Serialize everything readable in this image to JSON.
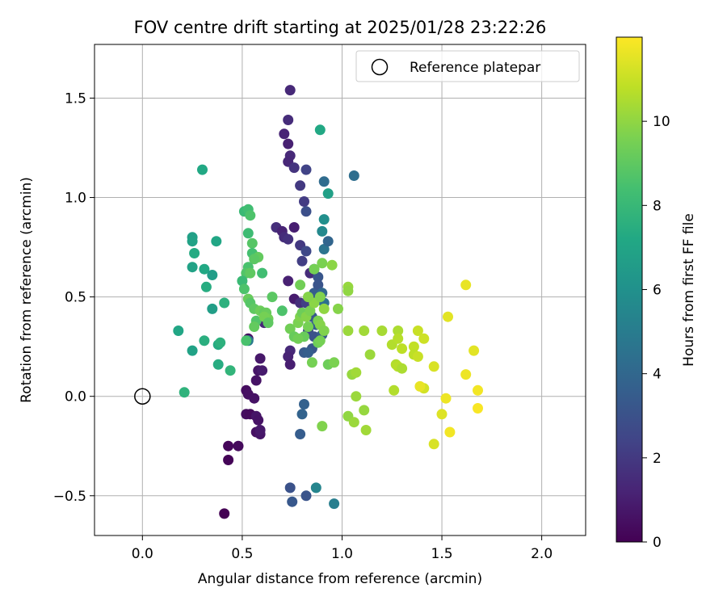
{
  "chart_data": {
    "type": "scatter",
    "title": "FOV centre drift starting at 2025/01/28 23:22:26",
    "xlabel": "Angular distance from reference (arcmin)",
    "ylabel": "Rotation from reference (arcmin)",
    "xlim": [
      -0.24,
      2.22
    ],
    "ylim": [
      -0.7,
      1.77
    ],
    "x_ticks": [
      0.0,
      0.5,
      1.0,
      1.5,
      2.0
    ],
    "x_tick_labels": [
      "0.0",
      "0.5",
      "1.0",
      "1.5",
      "2.0"
    ],
    "y_ticks": [
      -0.5,
      0.0,
      0.5,
      1.0,
      1.5
    ],
    "y_tick_labels": [
      "−0.5",
      "0.0",
      "0.5",
      "1.0",
      "1.5"
    ],
    "grid": true,
    "colormap": "viridis",
    "colorbar": {
      "label": "Hours from first FF file",
      "range": [
        0,
        12
      ],
      "ticks": [
        0,
        2,
        4,
        6,
        8,
        10
      ],
      "tick_labels": [
        "0",
        "2",
        "4",
        "6",
        "8",
        "10"
      ]
    },
    "legend": {
      "position": "top-right",
      "entries": [
        {
          "label": "Reference platepar",
          "marker": "open-circle"
        }
      ]
    },
    "reference_point": {
      "x": 0.0,
      "y": 0.0
    },
    "points": [
      {
        "x": 0.74,
        "y": 1.54,
        "h": 1.4
      },
      {
        "x": 0.73,
        "y": 1.39,
        "h": 1.5
      },
      {
        "x": 0.71,
        "y": 1.32,
        "h": 1.2
      },
      {
        "x": 0.73,
        "y": 1.27,
        "h": 1.1
      },
      {
        "x": 0.74,
        "y": 1.21,
        "h": 1.4
      },
      {
        "x": 0.73,
        "y": 1.18,
        "h": 1.3
      },
      {
        "x": 0.76,
        "y": 1.15,
        "h": 1.8
      },
      {
        "x": 0.79,
        "y": 1.06,
        "h": 2.0
      },
      {
        "x": 0.82,
        "y": 1.14,
        "h": 2.4
      },
      {
        "x": 0.81,
        "y": 0.98,
        "h": 2.1
      },
      {
        "x": 0.82,
        "y": 0.93,
        "h": 2.9
      },
      {
        "x": 0.67,
        "y": 0.85,
        "h": 1.6
      },
      {
        "x": 0.7,
        "y": 0.83,
        "h": 1.2
      },
      {
        "x": 0.76,
        "y": 0.85,
        "h": 1.0
      },
      {
        "x": 0.71,
        "y": 0.8,
        "h": 1.5
      },
      {
        "x": 0.73,
        "y": 0.79,
        "h": 1.7
      },
      {
        "x": 0.79,
        "y": 0.76,
        "h": 2.0
      },
      {
        "x": 0.82,
        "y": 0.73,
        "h": 2.6
      },
      {
        "x": 0.8,
        "y": 0.68,
        "h": 2.2
      },
      {
        "x": 0.84,
        "y": 0.62,
        "h": 1.5
      },
      {
        "x": 0.86,
        "y": 0.64,
        "h": 3.5
      },
      {
        "x": 0.88,
        "y": 0.6,
        "h": 3.2
      },
      {
        "x": 0.91,
        "y": 0.74,
        "h": 4.6
      },
      {
        "x": 0.93,
        "y": 0.78,
        "h": 3.9
      },
      {
        "x": 0.9,
        "y": 0.83,
        "h": 5.6
      },
      {
        "x": 0.91,
        "y": 0.89,
        "h": 5.9
      },
      {
        "x": 0.93,
        "y": 1.02,
        "h": 6.8
      },
      {
        "x": 0.91,
        "y": 1.08,
        "h": 4.2
      },
      {
        "x": 0.89,
        "y": 1.34,
        "h": 7.2
      },
      {
        "x": 1.06,
        "y": 1.11,
        "h": 4.3
      },
      {
        "x": 0.73,
        "y": 0.58,
        "h": 1.1
      },
      {
        "x": 0.76,
        "y": 0.49,
        "h": 0.9
      },
      {
        "x": 0.79,
        "y": 0.47,
        "h": 1.6
      },
      {
        "x": 0.82,
        "y": 0.47,
        "h": 2.3
      },
      {
        "x": 0.86,
        "y": 0.52,
        "h": 3.5
      },
      {
        "x": 0.88,
        "y": 0.56,
        "h": 3.1
      },
      {
        "x": 0.9,
        "y": 0.52,
        "h": 4.0
      },
      {
        "x": 0.91,
        "y": 0.47,
        "h": 4.4
      },
      {
        "x": 0.85,
        "y": 0.4,
        "h": 3.3
      },
      {
        "x": 0.87,
        "y": 0.36,
        "h": 3.6
      },
      {
        "x": 0.83,
        "y": 0.33,
        "h": 2.6
      },
      {
        "x": 0.86,
        "y": 0.3,
        "h": 3.0
      },
      {
        "x": 0.9,
        "y": 0.31,
        "h": 3.4
      },
      {
        "x": 0.88,
        "y": 0.28,
        "h": 2.9
      },
      {
        "x": 0.85,
        "y": 0.24,
        "h": 3.2
      },
      {
        "x": 0.81,
        "y": 0.22,
        "h": 3.4
      },
      {
        "x": 0.83,
        "y": 0.22,
        "h": 3.6
      },
      {
        "x": 0.74,
        "y": 0.23,
        "h": 1.4
      },
      {
        "x": 0.73,
        "y": 0.2,
        "h": 1.2
      },
      {
        "x": 0.74,
        "y": 0.16,
        "h": 1.0
      },
      {
        "x": 0.59,
        "y": 0.19,
        "h": 0.8
      },
      {
        "x": 0.58,
        "y": 0.13,
        "h": 0.7
      },
      {
        "x": 0.6,
        "y": 0.13,
        "h": 0.9
      },
      {
        "x": 0.57,
        "y": 0.08,
        "h": 0.6
      },
      {
        "x": 0.53,
        "y": 0.29,
        "h": 0.5
      },
      {
        "x": 0.53,
        "y": 0.28,
        "h": 4.9
      },
      {
        "x": 0.52,
        "y": 0.03,
        "h": 0.4
      },
      {
        "x": 0.53,
        "y": 0.01,
        "h": 0.5
      },
      {
        "x": 0.56,
        "y": -0.01,
        "h": 0.6
      },
      {
        "x": 0.52,
        "y": -0.09,
        "h": 0.4
      },
      {
        "x": 0.54,
        "y": -0.09,
        "h": 0.3
      },
      {
        "x": 0.57,
        "y": -0.1,
        "h": 0.7
      },
      {
        "x": 0.58,
        "y": -0.12,
        "h": 0.6
      },
      {
        "x": 0.57,
        "y": -0.18,
        "h": 0.5
      },
      {
        "x": 0.59,
        "y": -0.19,
        "h": 0.7
      },
      {
        "x": 0.59,
        "y": -0.17,
        "h": 0.8
      },
      {
        "x": 0.43,
        "y": -0.25,
        "h": 0.2
      },
      {
        "x": 0.48,
        "y": -0.25,
        "h": 0.3
      },
      {
        "x": 0.43,
        "y": -0.32,
        "h": 0.1
      },
      {
        "x": 0.41,
        "y": -0.59,
        "h": 0.0
      },
      {
        "x": 0.74,
        "y": -0.46,
        "h": 3.0
      },
      {
        "x": 0.75,
        "y": -0.53,
        "h": 3.3
      },
      {
        "x": 0.82,
        "y": -0.5,
        "h": 3.1
      },
      {
        "x": 0.87,
        "y": -0.46,
        "h": 5.4
      },
      {
        "x": 0.96,
        "y": -0.54,
        "h": 5.1
      },
      {
        "x": 0.79,
        "y": -0.19,
        "h": 3.5
      },
      {
        "x": 0.8,
        "y": -0.09,
        "h": 3.8
      },
      {
        "x": 0.81,
        "y": -0.04,
        "h": 3.7
      },
      {
        "x": 0.61,
        "y": 0.37,
        "h": 1.3
      },
      {
        "x": 0.3,
        "y": 1.14,
        "h": 7.2
      },
      {
        "x": 0.25,
        "y": 0.8,
        "h": 6.8
      },
      {
        "x": 0.25,
        "y": 0.78,
        "h": 6.9
      },
      {
        "x": 0.37,
        "y": 0.78,
        "h": 7.1
      },
      {
        "x": 0.26,
        "y": 0.72,
        "h": 7.3
      },
      {
        "x": 0.25,
        "y": 0.65,
        "h": 6.9
      },
      {
        "x": 0.31,
        "y": 0.64,
        "h": 7.2
      },
      {
        "x": 0.35,
        "y": 0.61,
        "h": 6.6
      },
      {
        "x": 0.32,
        "y": 0.55,
        "h": 7.4
      },
      {
        "x": 0.35,
        "y": 0.44,
        "h": 6.7
      },
      {
        "x": 0.41,
        "y": 0.47,
        "h": 7.6
      },
      {
        "x": 0.18,
        "y": 0.33,
        "h": 7.1
      },
      {
        "x": 0.31,
        "y": 0.28,
        "h": 7.5
      },
      {
        "x": 0.38,
        "y": 0.26,
        "h": 7.3
      },
      {
        "x": 0.39,
        "y": 0.27,
        "h": 7.6
      },
      {
        "x": 0.25,
        "y": 0.23,
        "h": 6.9
      },
      {
        "x": 0.38,
        "y": 0.16,
        "h": 7.4
      },
      {
        "x": 0.44,
        "y": 0.13,
        "h": 7.8
      },
      {
        "x": 0.21,
        "y": 0.02,
        "h": 7.7
      },
      {
        "x": 0.51,
        "y": 0.93,
        "h": 8.1
      },
      {
        "x": 0.53,
        "y": 0.94,
        "h": 8.3
      },
      {
        "x": 0.54,
        "y": 0.91,
        "h": 8.6
      },
      {
        "x": 0.53,
        "y": 0.82,
        "h": 8.2
      },
      {
        "x": 0.55,
        "y": 0.77,
        "h": 8.8
      },
      {
        "x": 0.55,
        "y": 0.72,
        "h": 8.4
      },
      {
        "x": 0.58,
        "y": 0.7,
        "h": 9.1
      },
      {
        "x": 0.56,
        "y": 0.69,
        "h": 8.9
      },
      {
        "x": 0.53,
        "y": 0.65,
        "h": 8.5
      },
      {
        "x": 0.52,
        "y": 0.62,
        "h": 8.7
      },
      {
        "x": 0.54,
        "y": 0.62,
        "h": 9.0
      },
      {
        "x": 0.6,
        "y": 0.62,
        "h": 8.3
      },
      {
        "x": 0.5,
        "y": 0.58,
        "h": 8.1
      },
      {
        "x": 0.51,
        "y": 0.54,
        "h": 8.6
      },
      {
        "x": 0.53,
        "y": 0.49,
        "h": 9.2
      },
      {
        "x": 0.54,
        "y": 0.47,
        "h": 8.8
      },
      {
        "x": 0.65,
        "y": 0.5,
        "h": 8.9
      },
      {
        "x": 0.56,
        "y": 0.44,
        "h": 9.0
      },
      {
        "x": 0.59,
        "y": 0.43,
        "h": 9.3
      },
      {
        "x": 0.61,
        "y": 0.42,
        "h": 9.1
      },
      {
        "x": 0.62,
        "y": 0.42,
        "h": 9.2
      },
      {
        "x": 0.63,
        "y": 0.39,
        "h": 9.4
      },
      {
        "x": 0.57,
        "y": 0.38,
        "h": 8.7
      },
      {
        "x": 0.61,
        "y": 0.4,
        "h": 9.5
      },
      {
        "x": 0.63,
        "y": 0.37,
        "h": 9.0
      },
      {
        "x": 0.7,
        "y": 0.43,
        "h": 8.6
      },
      {
        "x": 0.56,
        "y": 0.35,
        "h": 9.1
      },
      {
        "x": 0.52,
        "y": 0.28,
        "h": 8.5
      },
      {
        "x": 0.74,
        "y": 0.34,
        "h": 9.4
      },
      {
        "x": 0.76,
        "y": 0.3,
        "h": 9.2
      },
      {
        "x": 0.78,
        "y": 0.37,
        "h": 9.6
      },
      {
        "x": 0.79,
        "y": 0.4,
        "h": 9.7
      },
      {
        "x": 0.8,
        "y": 0.42,
        "h": 9.3
      },
      {
        "x": 0.82,
        "y": 0.4,
        "h": 9.8
      },
      {
        "x": 0.83,
        "y": 0.35,
        "h": 9.5
      },
      {
        "x": 0.81,
        "y": 0.3,
        "h": 9.2
      },
      {
        "x": 0.78,
        "y": 0.29,
        "h": 9.4
      },
      {
        "x": 0.88,
        "y": 0.38,
        "h": 9.6
      },
      {
        "x": 0.89,
        "y": 0.36,
        "h": 9.8
      },
      {
        "x": 0.91,
        "y": 0.33,
        "h": 9.7
      },
      {
        "x": 0.88,
        "y": 0.27,
        "h": 9.3
      },
      {
        "x": 0.89,
        "y": 0.28,
        "h": 9.5
      },
      {
        "x": 0.84,
        "y": 0.43,
        "h": 9.6
      },
      {
        "x": 0.86,
        "y": 0.47,
        "h": 9.9
      },
      {
        "x": 0.89,
        "y": 0.5,
        "h": 9.7
      },
      {
        "x": 0.83,
        "y": 0.5,
        "h": 9.8
      },
      {
        "x": 0.79,
        "y": 0.56,
        "h": 9.4
      },
      {
        "x": 0.86,
        "y": 0.64,
        "h": 9.5
      },
      {
        "x": 0.9,
        "y": 0.67,
        "h": 9.6
      },
      {
        "x": 0.95,
        "y": 0.66,
        "h": 9.9
      },
      {
        "x": 0.91,
        "y": 0.44,
        "h": 10.0
      },
      {
        "x": 0.98,
        "y": 0.44,
        "h": 9.8
      },
      {
        "x": 0.85,
        "y": 0.17,
        "h": 9.5
      },
      {
        "x": 0.93,
        "y": 0.16,
        "h": 9.3
      },
      {
        "x": 0.96,
        "y": 0.17,
        "h": 9.6
      },
      {
        "x": 0.9,
        "y": -0.15,
        "h": 9.7
      },
      {
        "x": 1.03,
        "y": 0.55,
        "h": 10.1
      },
      {
        "x": 1.03,
        "y": 0.53,
        "h": 10.0
      },
      {
        "x": 1.03,
        "y": 0.33,
        "h": 10.2
      },
      {
        "x": 1.11,
        "y": 0.33,
        "h": 10.3
      },
      {
        "x": 1.2,
        "y": 0.33,
        "h": 10.4
      },
      {
        "x": 1.14,
        "y": 0.21,
        "h": 10.2
      },
      {
        "x": 1.05,
        "y": 0.11,
        "h": 10.1
      },
      {
        "x": 1.07,
        "y": 0.12,
        "h": 10.3
      },
      {
        "x": 1.07,
        "y": 0.0,
        "h": 10.2
      },
      {
        "x": 1.11,
        "y": -0.07,
        "h": 10.1
      },
      {
        "x": 1.03,
        "y": -0.1,
        "h": 10.0
      },
      {
        "x": 1.06,
        "y": -0.13,
        "h": 10.2
      },
      {
        "x": 1.12,
        "y": -0.17,
        "h": 10.3
      },
      {
        "x": 1.25,
        "y": 0.26,
        "h": 10.6
      },
      {
        "x": 1.28,
        "y": 0.33,
        "h": 10.5
      },
      {
        "x": 1.28,
        "y": 0.29,
        "h": 10.7
      },
      {
        "x": 1.3,
        "y": 0.24,
        "h": 10.8
      },
      {
        "x": 1.36,
        "y": 0.25,
        "h": 10.9
      },
      {
        "x": 1.38,
        "y": 0.33,
        "h": 11.0
      },
      {
        "x": 1.41,
        "y": 0.29,
        "h": 11.1
      },
      {
        "x": 1.36,
        "y": 0.21,
        "h": 10.8
      },
      {
        "x": 1.38,
        "y": 0.2,
        "h": 11.0
      },
      {
        "x": 1.27,
        "y": 0.16,
        "h": 10.6
      },
      {
        "x": 1.28,
        "y": 0.15,
        "h": 10.7
      },
      {
        "x": 1.3,
        "y": 0.14,
        "h": 10.5
      },
      {
        "x": 1.26,
        "y": 0.03,
        "h": 10.6
      },
      {
        "x": 1.41,
        "y": 0.04,
        "h": 11.2
      },
      {
        "x": 1.39,
        "y": 0.05,
        "h": 11.6
      },
      {
        "x": 1.46,
        "y": 0.15,
        "h": 11.3
      },
      {
        "x": 1.53,
        "y": 0.4,
        "h": 11.5
      },
      {
        "x": 1.52,
        "y": -0.01,
        "h": 11.7
      },
      {
        "x": 1.5,
        "y": -0.09,
        "h": 11.4
      },
      {
        "x": 1.54,
        "y": -0.18,
        "h": 11.8
      },
      {
        "x": 1.46,
        "y": -0.24,
        "h": 11.3
      },
      {
        "x": 1.62,
        "y": 0.56,
        "h": 11.6
      },
      {
        "x": 1.66,
        "y": 0.23,
        "h": 11.5
      },
      {
        "x": 1.62,
        "y": 0.11,
        "h": 11.7
      },
      {
        "x": 1.68,
        "y": 0.03,
        "h": 11.8
      },
      {
        "x": 1.68,
        "y": -0.06,
        "h": 11.9
      }
    ]
  }
}
